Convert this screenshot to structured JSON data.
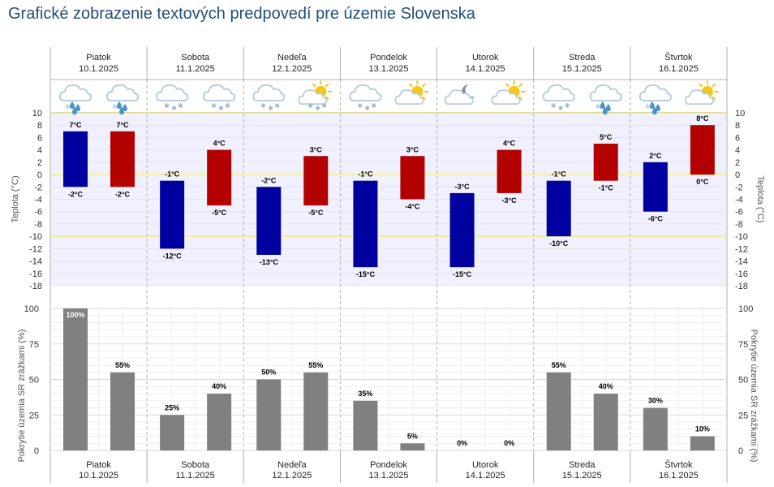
{
  "page": {
    "title": "Grafické zobrazenie textových predpovedí pre územie Slovenska"
  },
  "colors": {
    "max_bar": "#b30000",
    "min_bar": "#0000a0",
    "precip_bar": "#808080",
    "ref_line": "#eeee88",
    "band_fill": "#f0f0ff",
    "grid": "#e4e4e4",
    "divider": "#b0b0b0",
    "title": "#1f4e79",
    "icon_cloud": "#b7cfe0",
    "icon_drop": "#4a95c8",
    "icon_sun": "#f5c518",
    "icon_moon": "#8a8aa0"
  },
  "chart_data": [
    {
      "type": "bar",
      "name": "temperature",
      "ylabel": "Teplota (°C)",
      "ylim": [
        -18,
        10
      ],
      "yticks": [
        10,
        8,
        6,
        4,
        2,
        0,
        -2,
        -4,
        -6,
        -8,
        -10,
        -12,
        -14,
        -16,
        -18
      ],
      "reference_lines": [
        10,
        0,
        -10
      ],
      "unit": "°C",
      "days": [
        {
          "day": "Piatok",
          "date": "10.1.2025",
          "icons": [
            "cloud-rain-icon",
            "cloud-rain-icon"
          ],
          "bars": [
            {
              "kind": "min",
              "top": 7,
              "bottom": -2
            },
            {
              "kind": "max",
              "top": 7,
              "bottom": -2
            }
          ]
        },
        {
          "day": "Sobota",
          "date": "11.1.2025",
          "icons": [
            "cloud-snow-icon",
            "cloud-snow-icon"
          ],
          "bars": [
            {
              "kind": "min",
              "top": -1,
              "bottom": -12
            },
            {
              "kind": "max",
              "top": 4,
              "bottom": -5
            }
          ]
        },
        {
          "day": "Nedeľa",
          "date": "12.1.2025",
          "icons": [
            "cloud-snow-icon",
            "sun-cloud-snow-icon"
          ],
          "bars": [
            {
              "kind": "min",
              "top": -2,
              "bottom": -13
            },
            {
              "kind": "max",
              "top": 3,
              "bottom": -5
            }
          ]
        },
        {
          "day": "Pondelok",
          "date": "13.1.2025",
          "icons": [
            "cloud-snow-icon",
            "sun-cloud-icon"
          ],
          "bars": [
            {
              "kind": "min",
              "top": -1,
              "bottom": -15
            },
            {
              "kind": "max",
              "top": 3,
              "bottom": -4
            }
          ]
        },
        {
          "day": "Utorok",
          "date": "14.1.2025",
          "icons": [
            "moon-cloud-icon",
            "sun-cloud-icon"
          ],
          "bars": [
            {
              "kind": "min",
              "top": -3,
              "bottom": -15
            },
            {
              "kind": "max",
              "top": 4,
              "bottom": -3
            }
          ]
        },
        {
          "day": "Streda",
          "date": "15.1.2025",
          "icons": [
            "cloud-snow-icon",
            "cloud-rain-icon"
          ],
          "bars": [
            {
              "kind": "min",
              "top": -1,
              "bottom": -10
            },
            {
              "kind": "max",
              "top": 5,
              "bottom": -1
            }
          ]
        },
        {
          "day": "Štvrtok",
          "date": "16.1.2025",
          "icons": [
            "cloud-rain-icon",
            "sun-cloud-icon"
          ],
          "bars": [
            {
              "kind": "min",
              "top": 2,
              "bottom": -6
            },
            {
              "kind": "max",
              "top": 8,
              "bottom": 0
            }
          ]
        }
      ]
    },
    {
      "type": "bar",
      "name": "precipitation",
      "ylabel": "Pokrytie územia SR zrážkami (%)",
      "ylim": [
        0,
        100
      ],
      "yticks": [
        100,
        75,
        50,
        25,
        0
      ],
      "unit": "%",
      "days": [
        {
          "day": "Piatok",
          "date": "10.1.2025",
          "values": [
            100,
            55
          ]
        },
        {
          "day": "Sobota",
          "date": "11.1.2025",
          "values": [
            25,
            40
          ]
        },
        {
          "day": "Nedeľa",
          "date": "12.1.2025",
          "values": [
            50,
            55
          ]
        },
        {
          "day": "Pondelok",
          "date": "13.1.2025",
          "values": [
            35,
            5
          ]
        },
        {
          "day": "Utorok",
          "date": "14.1.2025",
          "values": [
            0,
            0
          ]
        },
        {
          "day": "Streda",
          "date": "15.1.2025",
          "values": [
            55,
            40
          ]
        },
        {
          "day": "Štvrtok",
          "date": "16.1.2025",
          "values": [
            30,
            10
          ]
        }
      ]
    }
  ]
}
